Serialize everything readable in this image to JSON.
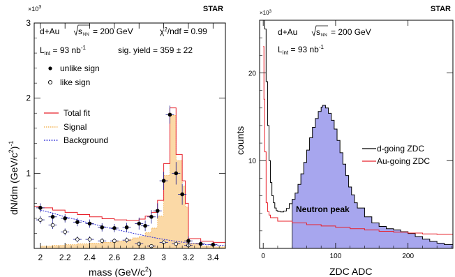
{
  "chart_data": [
    {
      "type": "histogram",
      "label": "STAR",
      "annotations": {
        "system": "d+Au",
        "energy": "= 200 GeV",
        "chi2": "= 0.99",
        "lumi": "= 93 nb",
        "sig_yield": "sig. yield = 359 ± 22"
      },
      "xlabel": "mass (GeV/c",
      "ylabel": "dN/dm (GeV/c",
      "y_multiplier": "×10",
      "xlim": [
        1.95,
        3.5
      ],
      "ylim": [
        0,
        3000
      ],
      "xticks": [
        "2",
        "2.2",
        "2.4",
        "2.6",
        "2.8",
        "3",
        "3.2",
        "3.4"
      ],
      "yticks": [
        "1",
        "2",
        "3"
      ],
      "legend_markers": [
        {
          "name": "unlike sign",
          "marker": "filled-circle"
        },
        {
          "name": "like sign",
          "marker": "open-circle"
        }
      ],
      "legend_curves": [
        {
          "name": "Total fit",
          "color": "#e8202a",
          "style": "solid"
        },
        {
          "name": "Signal",
          "color": "#f2a93b",
          "style": "dotted"
        },
        {
          "name": "Background",
          "color": "#2b2bd6",
          "style": "dashed"
        }
      ],
      "unlike_sign": [
        {
          "x": 2.0,
          "y": 540,
          "yerr": 60
        },
        {
          "x": 2.1,
          "y": 420,
          "yerr": 55
        },
        {
          "x": 2.2,
          "y": 400,
          "yerr": 55
        },
        {
          "x": 2.3,
          "y": 350,
          "yerr": 55
        },
        {
          "x": 2.4,
          "y": 330,
          "yerr": 55
        },
        {
          "x": 2.5,
          "y": 280,
          "yerr": 55
        },
        {
          "x": 2.6,
          "y": 270,
          "yerr": 55
        },
        {
          "x": 2.7,
          "y": 280,
          "yerr": 60
        },
        {
          "x": 2.8,
          "y": 330,
          "yerr": 80
        },
        {
          "x": 2.85,
          "y": 300,
          "yerr": 70
        },
        {
          "x": 2.9,
          "y": 420,
          "yerr": 90
        },
        {
          "x": 2.95,
          "y": 500,
          "yerr": 100
        },
        {
          "x": 3.0,
          "y": 900,
          "yerr": 120
        },
        {
          "x": 3.05,
          "y": 1780,
          "yerr": 120
        },
        {
          "x": 3.1,
          "y": 1000,
          "yerr": 150
        },
        {
          "x": 3.15,
          "y": 720,
          "yerr": 140
        },
        {
          "x": 3.2,
          "y": 100,
          "yerr": 60
        },
        {
          "x": 3.3,
          "y": 60,
          "yerr": 40
        },
        {
          "x": 3.4,
          "y": 50,
          "yerr": 30
        }
      ],
      "like_sign": [
        {
          "x": 2.0,
          "y": 380,
          "yerr": 50
        },
        {
          "x": 2.1,
          "y": 310,
          "yerr": 50
        },
        {
          "x": 2.2,
          "y": 220,
          "yerr": 45
        },
        {
          "x": 2.3,
          "y": 120,
          "yerr": 40
        },
        {
          "x": 2.4,
          "y": 120,
          "yerr": 40
        },
        {
          "x": 2.5,
          "y": 100,
          "yerr": 35
        },
        {
          "x": 2.6,
          "y": 100,
          "yerr": 35
        },
        {
          "x": 2.7,
          "y": 110,
          "yerr": 35
        },
        {
          "x": 2.8,
          "y": 60,
          "yerr": 30
        },
        {
          "x": 2.9,
          "y": 30,
          "yerr": 25
        },
        {
          "x": 3.0,
          "y": 80,
          "yerr": 30
        },
        {
          "x": 3.1,
          "y": 60,
          "yerr": 30
        },
        {
          "x": 3.2,
          "y": 40,
          "yerr": 25
        }
      ],
      "total_fit": [
        [
          1.95,
          560
        ],
        [
          2.0,
          540
        ],
        [
          2.1,
          510
        ],
        [
          2.2,
          480
        ],
        [
          2.3,
          450
        ],
        [
          2.4,
          420
        ],
        [
          2.5,
          395
        ],
        [
          2.6,
          380
        ],
        [
          2.7,
          370
        ],
        [
          2.8,
          390
        ],
        [
          2.85,
          430
        ],
        [
          2.9,
          480
        ],
        [
          2.95,
          640
        ],
        [
          3.0,
          1130
        ],
        [
          3.05,
          1870
        ],
        [
          3.1,
          1250
        ],
        [
          3.15,
          900
        ],
        [
          3.175,
          600
        ],
        [
          3.2,
          130
        ],
        [
          3.3,
          95
        ],
        [
          3.4,
          80
        ],
        [
          3.5,
          70
        ]
      ],
      "signal": [
        [
          2.0,
          30
        ],
        [
          2.1,
          40
        ],
        [
          2.2,
          50
        ],
        [
          2.3,
          60
        ],
        [
          2.4,
          70
        ],
        [
          2.5,
          80
        ],
        [
          2.6,
          100
        ],
        [
          2.7,
          120
        ],
        [
          2.75,
          140
        ],
        [
          2.8,
          160
        ],
        [
          2.85,
          210
        ],
        [
          2.9,
          270
        ],
        [
          2.95,
          430
        ],
        [
          3.0,
          970
        ],
        [
          3.05,
          1770
        ],
        [
          3.1,
          1170
        ],
        [
          3.15,
          830
        ],
        [
          3.175,
          550
        ],
        [
          3.2,
          70
        ],
        [
          3.3,
          30
        ],
        [
          3.4,
          20
        ],
        [
          3.5,
          15
        ]
      ],
      "background": [
        [
          2.0,
          510
        ],
        [
          2.1,
          470
        ],
        [
          2.2,
          420
        ],
        [
          2.3,
          380
        ],
        [
          2.4,
          335
        ],
        [
          2.5,
          295
        ],
        [
          2.6,
          255
        ],
        [
          2.7,
          220
        ],
        [
          2.8,
          185
        ],
        [
          2.9,
          150
        ],
        [
          3.0,
          120
        ],
        [
          3.1,
          95
        ],
        [
          3.2,
          72
        ],
        [
          3.3,
          55
        ],
        [
          3.4,
          45
        ],
        [
          3.5,
          40
        ]
      ]
    },
    {
      "type": "histogram",
      "label": "STAR",
      "annotations": {
        "system": "d+Au",
        "energy": "= 200 GeV",
        "lumi": "= 93 nb",
        "peak_label": "Neutron peak"
      },
      "xlabel": "ZDC ADC",
      "ylabel": "counts",
      "y_multiplier": "×10",
      "xlim": [
        -5,
        262
      ],
      "ylim": [
        0,
        26000
      ],
      "xticks": [
        "0",
        "100",
        "200"
      ],
      "yticks": [
        "10",
        "20"
      ],
      "fill_from_x": 40,
      "series": [
        {
          "name": "d-going ZDC",
          "color": "#000000",
          "points": [
            [
              0,
              26000
            ],
            [
              2,
              25000
            ],
            [
              4,
              19000
            ],
            [
              6,
              14000
            ],
            [
              8,
              10000
            ],
            [
              10,
              7500
            ],
            [
              12,
              6000
            ],
            [
              14,
              5200
            ],
            [
              16,
              4600
            ],
            [
              18,
              4300
            ],
            [
              20,
              4200
            ],
            [
              24,
              4150
            ],
            [
              28,
              4250
            ],
            [
              32,
              4550
            ],
            [
              36,
              5100
            ],
            [
              40,
              5600
            ],
            [
              44,
              6300
            ],
            [
              48,
              7300
            ],
            [
              52,
              8500
            ],
            [
              56,
              9800
            ],
            [
              60,
              11200
            ],
            [
              64,
              12600
            ],
            [
              68,
              13800
            ],
            [
              72,
              14800
            ],
            [
              76,
              15600
            ],
            [
              80,
              16100
            ],
            [
              82,
              16300
            ],
            [
              86,
              16000
            ],
            [
              90,
              15400
            ],
            [
              94,
              14600
            ],
            [
              98,
              13600
            ],
            [
              102,
              12300
            ],
            [
              106,
              10900
            ],
            [
              110,
              9600
            ],
            [
              114,
              8300
            ],
            [
              118,
              7000
            ],
            [
              122,
              6100
            ],
            [
              126,
              5200
            ],
            [
              130,
              4600
            ],
            [
              140,
              3600
            ],
            [
              150,
              2900
            ],
            [
              160,
              2500
            ],
            [
              170,
              2250
            ],
            [
              180,
              2100
            ],
            [
              190,
              1900
            ],
            [
              200,
              1700
            ],
            [
              210,
              1350
            ],
            [
              220,
              1050
            ],
            [
              230,
              800
            ],
            [
              240,
              600
            ],
            [
              250,
              450
            ],
            [
              262,
              320
            ]
          ]
        },
        {
          "name": "Au-going ZDC",
          "color": "#e8202a",
          "points": [
            [
              0,
              23000
            ],
            [
              1,
              17000
            ],
            [
              2,
              11000
            ],
            [
              4,
              5200
            ],
            [
              6,
              4200
            ],
            [
              8,
              3800
            ],
            [
              10,
              3500
            ],
            [
              20,
              3100
            ],
            [
              40,
              2900
            ],
            [
              60,
              2700
            ],
            [
              80,
              2550
            ],
            [
              100,
              2400
            ],
            [
              120,
              2250
            ],
            [
              140,
              2100
            ],
            [
              160,
              1950
            ],
            [
              180,
              1850
            ],
            [
              200,
              1750
            ],
            [
              220,
              1650
            ],
            [
              240,
              1600
            ],
            [
              262,
              1550
            ]
          ]
        }
      ]
    }
  ]
}
